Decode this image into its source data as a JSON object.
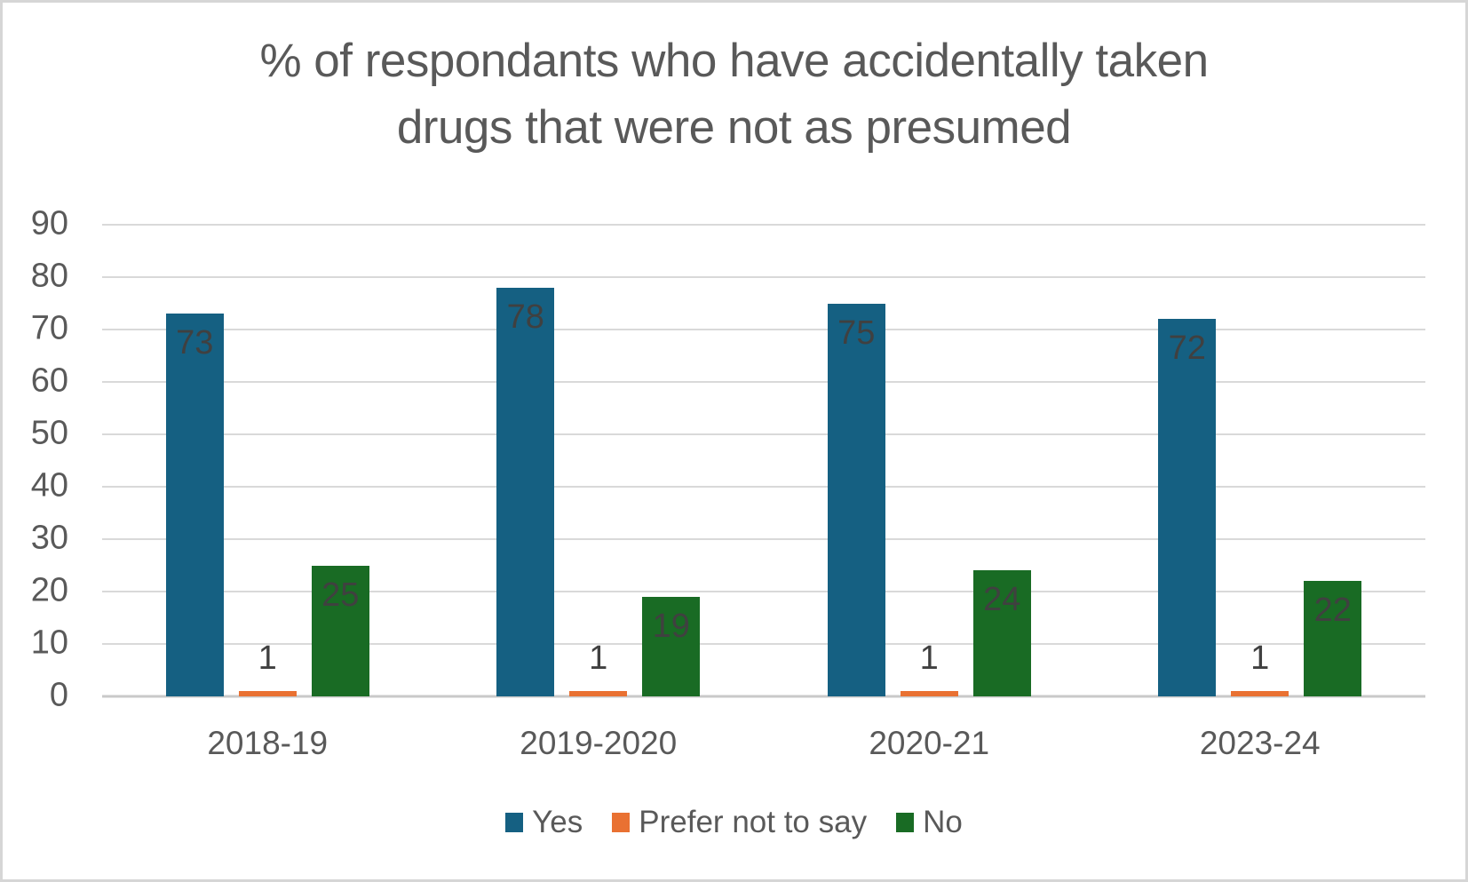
{
  "page": {
    "background_color": "#ffffff",
    "border_color": "#d6d6d6"
  },
  "chart_data": {
    "type": "bar",
    "title": "% of respondants who have accidentally taken drugs that were not as presumed",
    "title_lines": [
      "% of respondants who have accidentally taken",
      "drugs that were not as presumed"
    ],
    "categories": [
      "2018-19",
      "2019-2020",
      "2020-21",
      "2023-24"
    ],
    "series": [
      {
        "name": "Yes",
        "color": "#156082",
        "values": [
          73,
          78,
          75,
          72
        ],
        "data_label_position": "inside-end"
      },
      {
        "name": "Prefer not to say",
        "color": "#E97132",
        "values": [
          1,
          1,
          1,
          1
        ],
        "data_label_position": "outside-end"
      },
      {
        "name": "No",
        "color": "#196B24",
        "values": [
          25,
          19,
          24,
          22
        ],
        "data_label_position": "inside-end"
      }
    ],
    "y_axis": {
      "min": 0,
      "max": 90,
      "step": 10,
      "tick_labels": [
        "0",
        "10",
        "20",
        "30",
        "40",
        "50",
        "60",
        "70",
        "80",
        "90"
      ]
    },
    "x_axis": {
      "tick_labels": [
        "2018-19",
        "2019-2020",
        "2020-21",
        "2023-24"
      ]
    },
    "grid": true,
    "data_labels_shown": true,
    "legend_position": "bottom",
    "style": {
      "grid_color": "#d9d9d9",
      "axis_line_color": "#c9c9c9",
      "tick_label_color": "#595959",
      "title_color": "#595959",
      "data_label_color": "#404040"
    }
  }
}
